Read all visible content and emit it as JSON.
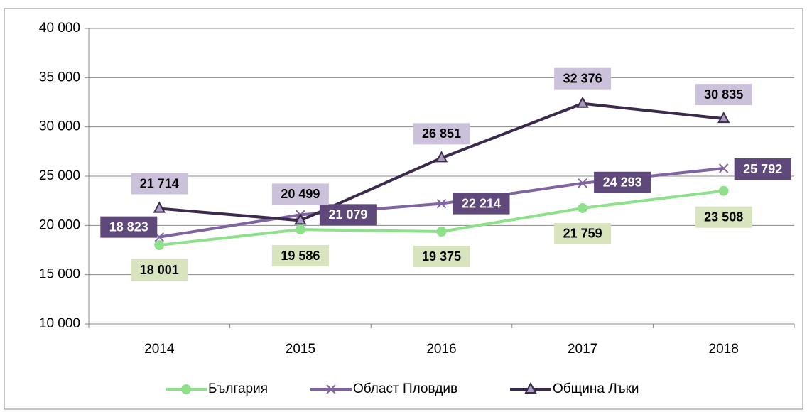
{
  "chart_data": {
    "type": "line",
    "categories": [
      "2014",
      "2015",
      "2016",
      "2017",
      "2018"
    ],
    "series": [
      {
        "name": "България",
        "color": "#8fe08a",
        "marker": "circle",
        "label_bg": "#d7e4bd",
        "label_color": "#000000",
        "values": [
          18001,
          19586,
          19375,
          21759,
          23508
        ],
        "value_labels": [
          "18 001",
          "19 586",
          "19 375",
          "21 759",
          "23 508"
        ]
      },
      {
        "name": "Област Пловдив",
        "color": "#8064a2",
        "marker": "x",
        "label_bg": "#5f497a",
        "label_color": "#ffffff",
        "values": [
          18823,
          21079,
          22214,
          24293,
          25792
        ],
        "value_labels": [
          "18 823",
          "21 079",
          "22 214",
          "24 293",
          "25 792"
        ]
      },
      {
        "name": "Община Лъки",
        "color": "#3b2a4c",
        "marker": "triangle",
        "label_bg": "#ccc1da",
        "label_color": "#000000",
        "values": [
          21714,
          20499,
          26851,
          32376,
          30835
        ],
        "value_labels": [
          "21 714",
          "20 499",
          "26 851",
          "32 376",
          "30 835"
        ]
      }
    ],
    "ylim": [
      10000,
      40000
    ],
    "yticks": [
      {
        "value": 10000,
        "label": "10 000"
      },
      {
        "value": 15000,
        "label": "15 000"
      },
      {
        "value": 20000,
        "label": "20 000"
      },
      {
        "value": 25000,
        "label": "25 000"
      },
      {
        "value": 30000,
        "label": "30 000"
      },
      {
        "value": 35000,
        "label": "35 000"
      },
      {
        "value": 40000,
        "label": "40 000"
      }
    ],
    "grid": true,
    "legend": "bottom"
  }
}
